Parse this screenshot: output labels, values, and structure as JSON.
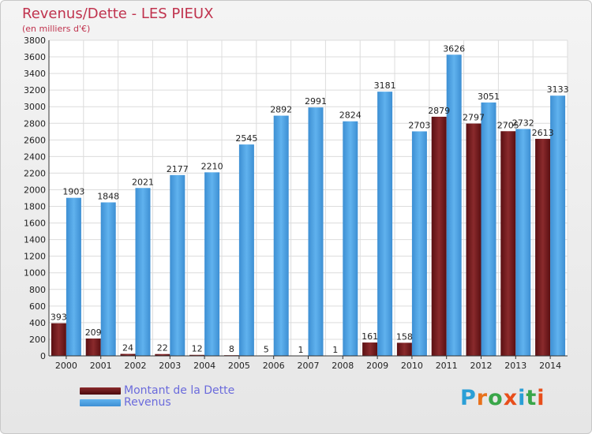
{
  "header": {
    "title": "Revenus/Dette - LES PIEUX",
    "subtitle": "(en milliers d'€)"
  },
  "legend": {
    "debt": "Montant de la Dette",
    "revenue": "Revenus"
  },
  "logo": {
    "text": "Proxiti",
    "letters": [
      "P",
      "r",
      "o",
      "x",
      "i",
      "t",
      "i"
    ],
    "colors": [
      "#2a9fd6",
      "#e8711b",
      "#39a649",
      "#e84e1b",
      "#2a9fd6",
      "#39a649",
      "#e84e1b"
    ]
  },
  "colors": {
    "debt": "#7a1f1f",
    "revenue": "#4a9fe0",
    "title": "#c0334e"
  },
  "chart_data": {
    "type": "bar",
    "categories": [
      "2000",
      "2001",
      "2002",
      "2003",
      "2004",
      "2005",
      "2006",
      "2007",
      "2008",
      "2009",
      "2010",
      "2011",
      "2012",
      "2013",
      "2014"
    ],
    "series": [
      {
        "name": "Montant de la Dette",
        "values": [
          393,
          209,
          24,
          22,
          12,
          8,
          5,
          1,
          1,
          161,
          158,
          2879,
          2797,
          2705,
          2613
        ]
      },
      {
        "name": "Revenus",
        "values": [
          1903,
          1848,
          2021,
          2177,
          2210,
          2545,
          2892,
          2991,
          2824,
          3181,
          2703,
          3626,
          3051,
          2732,
          3133
        ]
      }
    ],
    "title": "Revenus/Dette - LES PIEUX",
    "ylabel": "(en milliers d'€)",
    "ylim": [
      0,
      3800
    ],
    "yticks": [
      0,
      200,
      400,
      600,
      800,
      1000,
      1200,
      1400,
      1600,
      1800,
      2000,
      2200,
      2400,
      2600,
      2800,
      3000,
      3200,
      3400,
      3600,
      3800
    ],
    "grid": true,
    "legend_position": "bottom-left"
  }
}
